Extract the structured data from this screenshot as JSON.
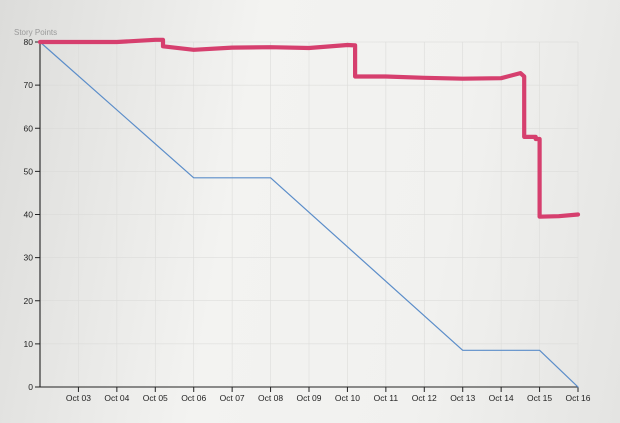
{
  "chart_data": {
    "type": "line",
    "ylabel": "Story Points",
    "xlabel": "",
    "ylim": [
      0,
      80
    ],
    "yticks": [
      0,
      10,
      20,
      30,
      40,
      50,
      60,
      70,
      80
    ],
    "x_ticks": [
      "Oct 03",
      "Oct 04",
      "Oct 05",
      "Oct 06",
      "Oct 07",
      "Oct 08",
      "Oct 09",
      "Oct 10",
      "Oct 11",
      "Oct 12",
      "Oct 13",
      "Oct 14",
      "Oct 15",
      "Oct 16"
    ],
    "xlim": [
      "Oct 02",
      "Oct 16"
    ],
    "grid": true,
    "series": [
      {
        "color": "#5b8dc9",
        "points": [
          [
            "Oct 02",
            80
          ],
          [
            "Oct 06",
            48.5
          ],
          [
            "Oct 08",
            48.5
          ],
          [
            "Oct 13",
            8.5
          ],
          [
            "Oct 15",
            8.5
          ],
          [
            "Oct 16",
            0
          ]
        ]
      },
      {
        "color": "#d63f6e",
        "points": [
          [
            "Oct 02",
            80
          ],
          [
            "Oct 03",
            80
          ],
          [
            "Oct 04",
            80
          ],
          [
            "Oct 05",
            80.5
          ],
          [
            "Oct 05.2",
            80.5
          ],
          [
            "Oct 05.2",
            79
          ],
          [
            "Oct 06",
            78.2
          ],
          [
            "Oct 07",
            78.7
          ],
          [
            "Oct 08",
            78.8
          ],
          [
            "Oct 09",
            78.6
          ],
          [
            "Oct 10",
            79.3
          ],
          [
            "Oct 10.2",
            79.2
          ],
          [
            "Oct 10.2",
            72
          ],
          [
            "Oct 11",
            72
          ],
          [
            "Oct 12",
            71.7
          ],
          [
            "Oct 13",
            71.5
          ],
          [
            "Oct 14",
            71.6
          ],
          [
            "Oct 14.5",
            72.8
          ],
          [
            "Oct 14.6",
            72
          ],
          [
            "Oct 14.6",
            58
          ],
          [
            "Oct 14.9",
            58
          ],
          [
            "Oct 14.9",
            57.5
          ],
          [
            "Oct 15",
            57.5
          ],
          [
            "Oct 15",
            39.5
          ],
          [
            "Oct 15.5",
            39.6
          ],
          [
            "Oct 16",
            40
          ]
        ]
      }
    ]
  }
}
